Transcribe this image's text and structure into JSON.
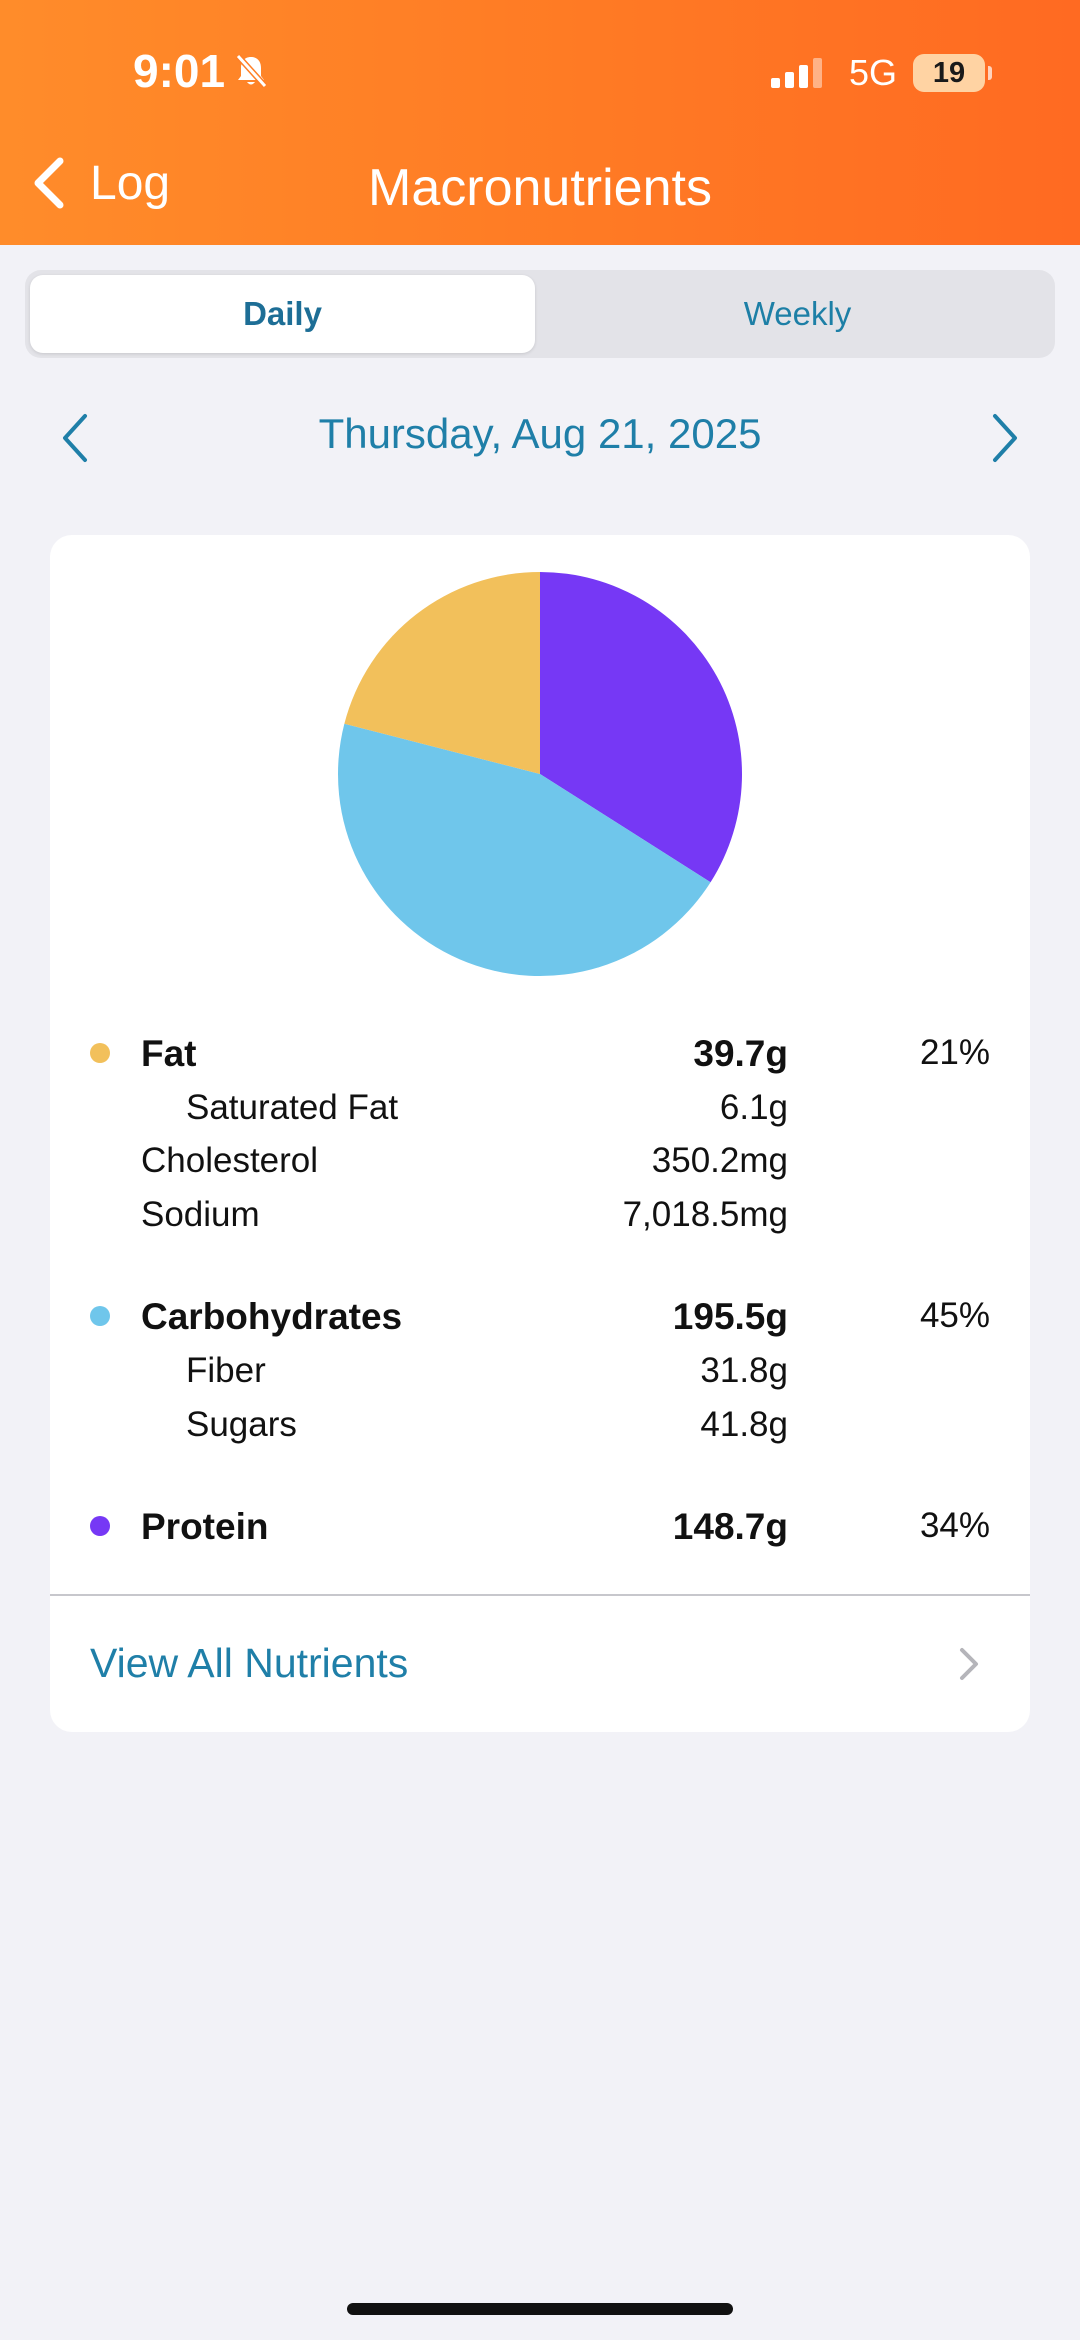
{
  "status_bar": {
    "time": "9:01",
    "network": "5G",
    "battery": "19"
  },
  "nav": {
    "back_label": "Log",
    "title": "Macronutrients"
  },
  "tabs": {
    "daily": "Daily",
    "weekly": "Weekly",
    "selected": "Daily"
  },
  "date": "Thursday, Aug 21, 2025",
  "colors": {
    "fat": "#f2c05b",
    "carbs": "#6fc6eb",
    "protein": "#7638f5",
    "accent": "#1f7fa8",
    "header": "#ff7a24"
  },
  "chart_data": {
    "type": "pie",
    "slices": [
      {
        "label": "Protein",
        "value": 34,
        "color": "#7638f5"
      },
      {
        "label": "Carbohydrates",
        "value": 45,
        "color": "#6fc6eb"
      },
      {
        "label": "Fat",
        "value": 21,
        "color": "#f2c05b"
      }
    ]
  },
  "nutrients": {
    "fat": {
      "label": "Fat",
      "value": "39.7g",
      "percent": "21%",
      "saturated_fat": {
        "label": "Saturated Fat",
        "value": "6.1g"
      },
      "cholesterol": {
        "label": "Cholesterol",
        "value": "350.2mg"
      },
      "sodium": {
        "label": "Sodium",
        "value": "7,018.5mg"
      }
    },
    "carbs": {
      "label": "Carbohydrates",
      "value": "195.5g",
      "percent": "45%",
      "fiber": {
        "label": "Fiber",
        "value": "31.8g"
      },
      "sugars": {
        "label": "Sugars",
        "value": "41.8g"
      }
    },
    "protein": {
      "label": "Protein",
      "value": "148.7g",
      "percent": "34%"
    }
  },
  "view_all_label": "View All Nutrients"
}
